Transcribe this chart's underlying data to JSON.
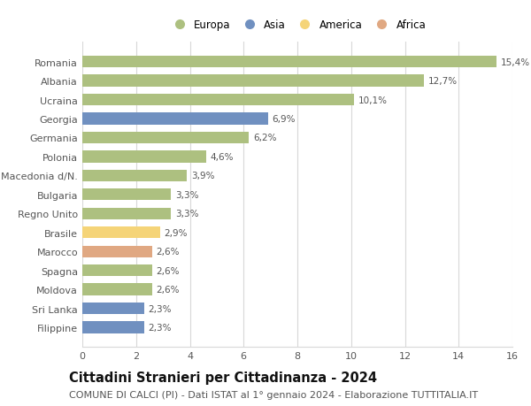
{
  "categories": [
    "Filippine",
    "Sri Lanka",
    "Moldova",
    "Spagna",
    "Marocco",
    "Brasile",
    "Regno Unito",
    "Bulgaria",
    "Macedonia d/N.",
    "Polonia",
    "Germania",
    "Georgia",
    "Ucraina",
    "Albania",
    "Romania"
  ],
  "values": [
    2.3,
    2.3,
    2.6,
    2.6,
    2.6,
    2.9,
    3.3,
    3.3,
    3.9,
    4.6,
    6.2,
    6.9,
    10.1,
    12.7,
    15.4
  ],
  "labels": [
    "2,3%",
    "2,3%",
    "2,6%",
    "2,6%",
    "2,6%",
    "2,9%",
    "3,3%",
    "3,3%",
    "3,9%",
    "4,6%",
    "6,2%",
    "6,9%",
    "10,1%",
    "12,7%",
    "15,4%"
  ],
  "colors": [
    "#7090c0",
    "#7090c0",
    "#adc080",
    "#adc080",
    "#e0a882",
    "#f5d478",
    "#adc080",
    "#adc080",
    "#adc080",
    "#adc080",
    "#adc080",
    "#7090c0",
    "#adc080",
    "#adc080",
    "#adc080"
  ],
  "legend_labels": [
    "Europa",
    "Asia",
    "America",
    "Africa"
  ],
  "legend_colors": [
    "#adc080",
    "#7090c0",
    "#f5d478",
    "#e0a882"
  ],
  "title": "Cittadini Stranieri per Cittadinanza - 2024",
  "subtitle": "COMUNE DI CALCI (PI) - Dati ISTAT al 1° gennaio 2024 - Elaborazione TUTTITALIA.IT",
  "xlim": [
    0,
    16
  ],
  "xticks": [
    0,
    2,
    4,
    6,
    8,
    10,
    12,
    14,
    16
  ],
  "background_color": "#ffffff",
  "grid_color": "#d8d8d8",
  "bar_height": 0.62,
  "title_fontsize": 10.5,
  "subtitle_fontsize": 8,
  "label_fontsize": 7.5,
  "ytick_fontsize": 8,
  "xtick_fontsize": 8
}
